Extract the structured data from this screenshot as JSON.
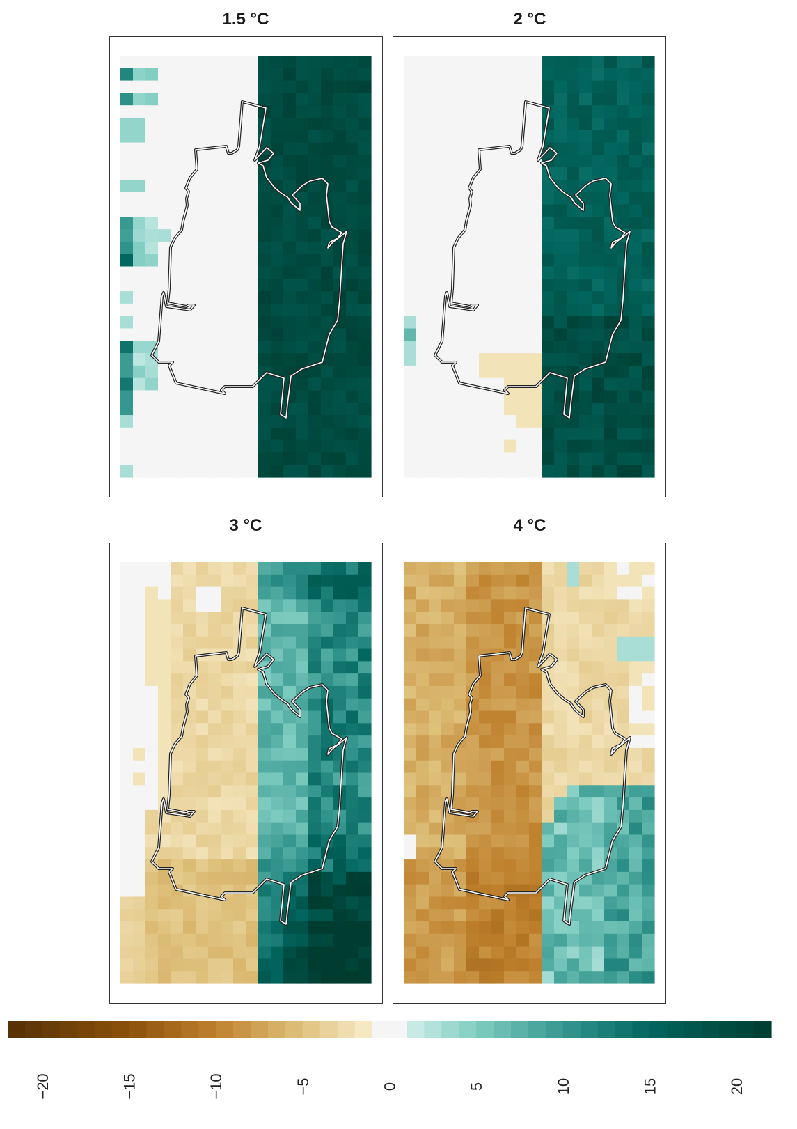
{
  "chart_data": {
    "type": "heatmap",
    "panels": [
      {
        "title": "1.5 °C",
        "scenario": "1.5C"
      },
      {
        "title": "2 °C",
        "scenario": "2C"
      },
      {
        "title": "3 °C",
        "scenario": "3C"
      },
      {
        "title": "4 °C",
        "scenario": "4C"
      }
    ],
    "colorbar": {
      "range": [
        -22,
        22
      ],
      "ticks": [
        "−20",
        "−15",
        "−10",
        "−5",
        "0",
        "5",
        "10",
        "15",
        "20"
      ],
      "tick_values": [
        -20,
        -15,
        -10,
        -5,
        0,
        5,
        10,
        15,
        20
      ],
      "palette": "brown-white-teal diverging (BrBG)",
      "tick_label_rotation": "vertical"
    },
    "grid": {
      "columns": 20,
      "rows": 34
    }
  }
}
